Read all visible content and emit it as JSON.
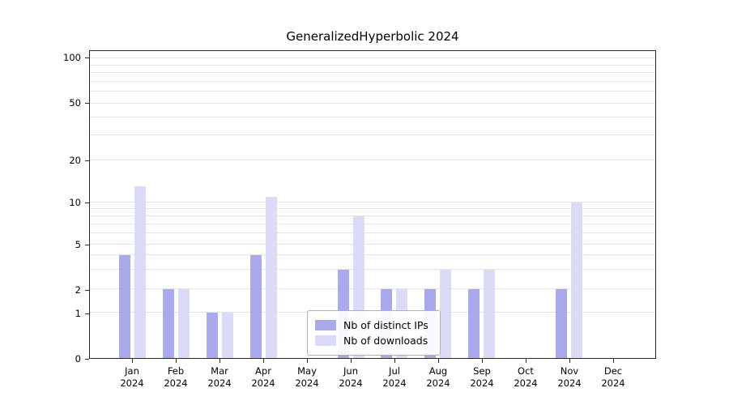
{
  "chart_data": {
    "type": "bar",
    "title": "GeneralizedHyperbolic 2024",
    "categories": [
      "Jan 2024",
      "Feb 2024",
      "Mar 2024",
      "Apr 2024",
      "May 2024",
      "Jun 2024",
      "Jul 2024",
      "Aug 2024",
      "Sep 2024",
      "Oct 2024",
      "Nov 2024",
      "Dec 2024"
    ],
    "series": [
      {
        "name": "Nb of distinct IPs",
        "color": "#a9a9eb",
        "values": [
          4,
          2,
          1,
          4,
          0,
          3,
          2,
          2,
          2,
          0,
          2,
          0
        ]
      },
      {
        "name": "Nb of downloads",
        "color": "#dbdbf8",
        "values": [
          13,
          2,
          1,
          11,
          0,
          8,
          2,
          3,
          3,
          0,
          10,
          0
        ]
      }
    ],
    "y_ticks": [
      0,
      1,
      2,
      5,
      10,
      20,
      50,
      100
    ],
    "ylim": [
      0,
      100
    ],
    "yscale": "symlog",
    "grid": true,
    "legend": {
      "position": "lower center",
      "entries": [
        "Nb of distinct IPs",
        "Nb of downloads"
      ]
    }
  }
}
